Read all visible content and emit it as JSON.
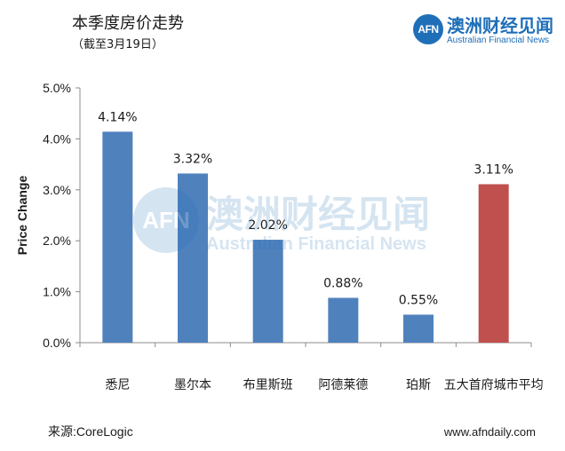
{
  "header": {
    "title": "本季度房价走势",
    "subtitle": "（截至3月19日）"
  },
  "brand": {
    "logo_text": "AFN",
    "name_cn": "澳洲财经见闻",
    "name_en": "Australian Financial News"
  },
  "footer": {
    "source": "来源:CoreLogic",
    "website": "www.afndaily.com"
  },
  "colors": {
    "series": "#4f81bd",
    "highlight": "#c0504d",
    "brand": "#1f6fb8"
  },
  "chart_data": {
    "type": "bar",
    "title": "",
    "xlabel": "",
    "ylabel": "Price Change",
    "categories": [
      "悉尼",
      "墨尔本",
      "布里斯班",
      "阿德莱德",
      "珀斯",
      "五大首府城市平均"
    ],
    "values": [
      4.14,
      3.32,
      2.02,
      0.88,
      0.55,
      3.11
    ],
    "value_labels": [
      "4.14%",
      "3.32%",
      "2.02%",
      "0.88%",
      "0.55%",
      "3.11%"
    ],
    "bar_colors": [
      "#4f81bd",
      "#4f81bd",
      "#4f81bd",
      "#4f81bd",
      "#4f81bd",
      "#c0504d"
    ],
    "ylim": [
      0,
      5
    ],
    "yticks": [
      0,
      1,
      2,
      3,
      4,
      5
    ],
    "ytick_labels": [
      "0.0%",
      "1.0%",
      "2.0%",
      "3.0%",
      "4.0%",
      "5.0%"
    ],
    "grid": false,
    "legend": "none"
  }
}
